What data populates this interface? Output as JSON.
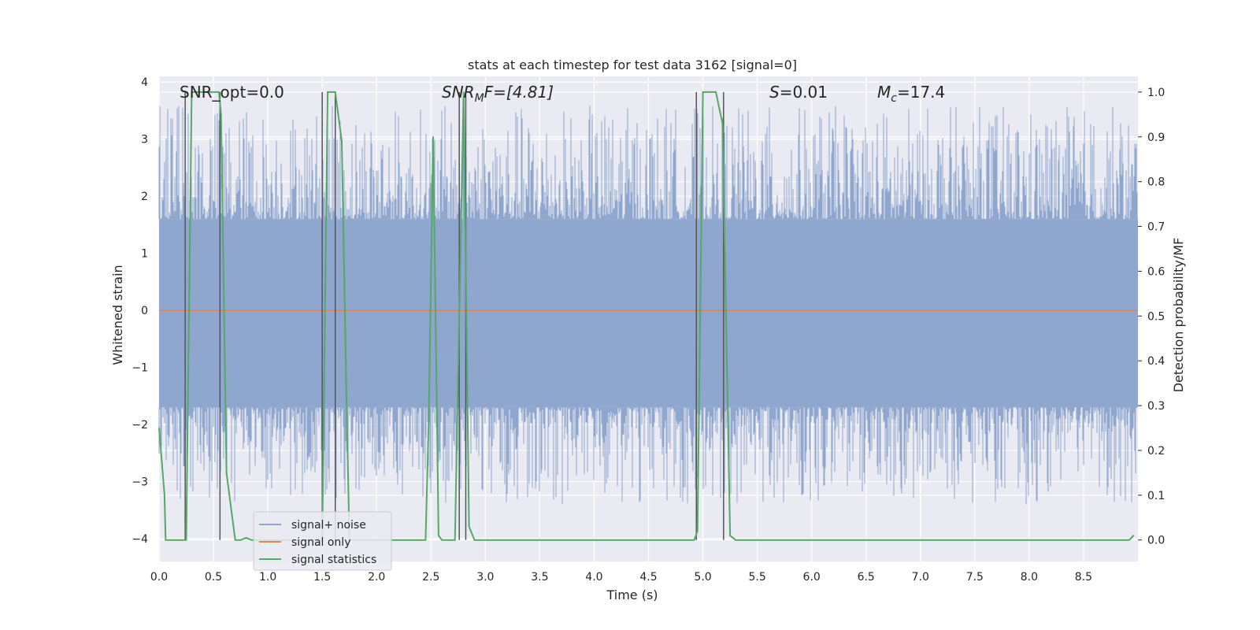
{
  "chart_data": {
    "type": "line",
    "title": "stats at each timestep for test data 3162 [signal=0]",
    "xlabel": "Time (s)",
    "ylabel": "Whitened strain",
    "y2label": "Detection probability/MF",
    "xlim": [
      0.0,
      9.0
    ],
    "ylim": [
      -4.4,
      4.1
    ],
    "y2lim": [
      -0.048,
      1.035
    ],
    "xticks": [
      "0.0",
      "0.5",
      "1.0",
      "1.5",
      "2.0",
      "2.5",
      "3.0",
      "3.5",
      "4.0",
      "4.5",
      "5.0",
      "5.5",
      "6.0",
      "6.5",
      "7.0",
      "7.5",
      "8.0",
      "8.5"
    ],
    "yticks": [
      "−4",
      "−3",
      "−2",
      "−1",
      "0",
      "1",
      "2",
      "3",
      "4"
    ],
    "y2ticks": [
      "0.0",
      "0.1",
      "0.2",
      "0.3",
      "0.4",
      "0.5",
      "0.6",
      "0.7",
      "0.8",
      "0.9",
      "1.0"
    ],
    "annotations": {
      "snr_opt": "SNR_opt=0.0",
      "snr_mf_base": "SNR",
      "snr_mf_sub": "M",
      "snr_mf_rest": "F=[4.81]",
      "s_label": "S",
      "s_value": "=0.01",
      "mc_base": "M",
      "mc_sub": "c",
      "mc_value": "=17.4"
    },
    "legend": {
      "placement": "lower-left",
      "entries": [
        {
          "label": "signal+ noise",
          "color": "#8fa6cf"
        },
        {
          "label": "signal only",
          "color": "#dd8452"
        },
        {
          "label": "signal statistics",
          "color": "#55a868"
        }
      ]
    },
    "series": [
      {
        "name": "signal+ noise",
        "type": "noise-band",
        "color": "#8fa6cf",
        "core_range": [
          -1.7,
          1.6
        ],
        "typical_peak_range": [
          -3.4,
          3.6
        ]
      },
      {
        "name": "signal only",
        "color": "#dd8452",
        "values_constant": 0.0
      },
      {
        "name": "signal statistics",
        "axis": "right",
        "color": "#55a868",
        "x": [
          0.0,
          0.05,
          0.06,
          0.25,
          0.3,
          0.55,
          0.57,
          0.62,
          0.7,
          0.75,
          0.8,
          0.85,
          1.5,
          1.55,
          1.62,
          1.68,
          1.72,
          1.75,
          2.45,
          2.48,
          2.52,
          2.57,
          2.6,
          2.65,
          2.72,
          2.76,
          2.8,
          2.85,
          2.9,
          2.95,
          4.92,
          4.95,
          5.0,
          5.12,
          5.18,
          5.25,
          5.3,
          8.92,
          8.96
        ],
        "values": [
          0.25,
          0.1,
          0.0,
          0.0,
          1.0,
          1.0,
          0.95,
          0.15,
          0.0,
          0.0,
          0.005,
          0.0,
          0.0,
          1.0,
          1.0,
          0.89,
          0.35,
          0.0,
          0.0,
          0.27,
          0.9,
          0.01,
          0.0,
          0.0,
          0.0,
          0.5,
          1.0,
          0.03,
          0.0,
          0.0,
          0.0,
          0.02,
          1.0,
          1.0,
          0.93,
          0.01,
          0.0,
          0.0,
          0.01
        ]
      }
    ],
    "vertical_markers": [
      0.24,
      0.56,
      1.5,
      1.62,
      2.76,
      2.82,
      4.94,
      5.19
    ]
  }
}
